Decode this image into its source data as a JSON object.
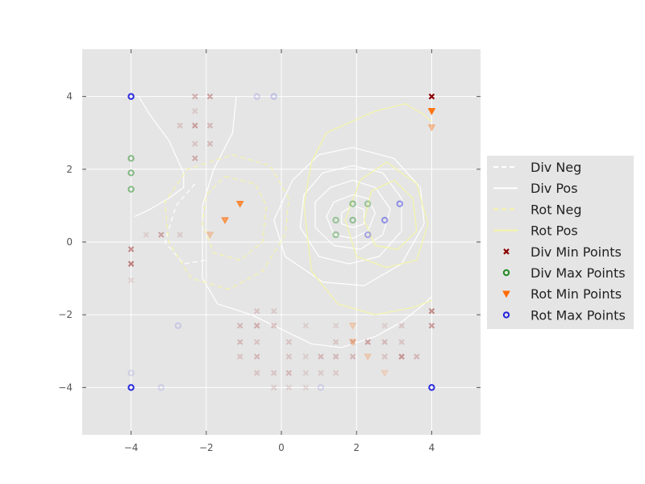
{
  "chart_data": {
    "type": "scatter",
    "title": "",
    "xlabel": "",
    "ylabel": "",
    "xlim": [
      -5.3,
      5.3
    ],
    "ylim": [
      -5.3,
      5.3
    ],
    "grid": true,
    "background": "#e5e5e5",
    "legend_position": "right",
    "x_ticks": [
      {
        "value": -4,
        "label": "−4"
      },
      {
        "value": -2,
        "label": "−2"
      },
      {
        "value": 0,
        "label": "0"
      },
      {
        "value": 2,
        "label": "2"
      },
      {
        "value": 4,
        "label": "4"
      }
    ],
    "y_ticks": [
      {
        "value": 4,
        "label": "4"
      },
      {
        "value": 2,
        "label": "2"
      },
      {
        "value": 0,
        "label": "0"
      },
      {
        "value": -2,
        "label": "−2"
      },
      {
        "value": -4,
        "label": "−4"
      }
    ],
    "legend": [
      {
        "label": "Div Neg",
        "kind": "line",
        "color": "#ffffff",
        "dashed": true
      },
      {
        "label": "Div Pos",
        "kind": "line",
        "color": "#ffffff",
        "dashed": false
      },
      {
        "label": "Rot Neg",
        "kind": "line",
        "color": "#f5f5a8",
        "dashed": true
      },
      {
        "label": "Rot Pos",
        "kind": "line",
        "color": "#f5f5a8",
        "dashed": false
      },
      {
        "label": "Div Min Points",
        "kind": "x",
        "color": "#8b0000"
      },
      {
        "label": "Div Max Points",
        "kind": "o",
        "color": "#228b22"
      },
      {
        "label": "Rot Min Points",
        "kind": "v",
        "color": "#ff6a00"
      },
      {
        "label": "Rot Max Points",
        "kind": "o",
        "color": "#2222dd"
      }
    ],
    "div_neg_contours": [
      [
        [
          -2.3,
          1.6
        ],
        [
          -2.8,
          1.0
        ],
        [
          -3.1,
          0.0
        ],
        [
          -2.6,
          -0.6
        ],
        [
          -2.0,
          -0.5
        ]
      ]
    ],
    "div_pos_contours": [
      [
        [
          -3.8,
          4.0
        ],
        [
          -3.5,
          3.5
        ],
        [
          -3.0,
          2.8
        ],
        [
          -2.6,
          1.9
        ],
        [
          -2.6,
          1.5
        ],
        [
          -3.0,
          1.2
        ],
        [
          -3.5,
          0.9
        ],
        [
          -3.9,
          0.7
        ]
      ],
      [
        [
          -1.2,
          4.0
        ],
        [
          -1.3,
          3.0
        ],
        [
          -1.8,
          2.0
        ],
        [
          -2.1,
          1.0
        ],
        [
          -2.1,
          0.0
        ],
        [
          -2.1,
          -1.0
        ],
        [
          -1.7,
          -1.7
        ],
        [
          -0.8,
          -2.0
        ],
        [
          0.0,
          -2.4
        ],
        [
          0.8,
          -2.8
        ],
        [
          1.6,
          -2.9
        ],
        [
          2.5,
          -2.6
        ],
        [
          3.2,
          -2.2
        ],
        [
          3.8,
          -1.7
        ],
        [
          4.0,
          -1.5
        ]
      ],
      [
        [
          1.9,
          2.6
        ],
        [
          3.0,
          2.3
        ],
        [
          3.7,
          1.5
        ],
        [
          3.8,
          0.5
        ],
        [
          3.2,
          -0.6
        ],
        [
          2.2,
          -1.2
        ],
        [
          1.1,
          -1.1
        ],
        [
          0.1,
          -0.4
        ],
        [
          -0.2,
          0.6
        ],
        [
          0.3,
          1.7
        ],
        [
          1.0,
          2.4
        ],
        [
          1.9,
          2.6
        ]
      ],
      [
        [
          1.9,
          2.1
        ],
        [
          2.7,
          1.9
        ],
        [
          3.2,
          1.2
        ],
        [
          3.2,
          0.3
        ],
        [
          2.6,
          -0.4
        ],
        [
          1.8,
          -0.6
        ],
        [
          1.0,
          -0.4
        ],
        [
          0.5,
          0.4
        ],
        [
          0.6,
          1.3
        ],
        [
          1.1,
          1.9
        ],
        [
          1.9,
          2.1
        ]
      ],
      [
        [
          1.9,
          1.7
        ],
        [
          2.5,
          1.5
        ],
        [
          2.9,
          0.9
        ],
        [
          2.7,
          0.2
        ],
        [
          2.1,
          -0.2
        ],
        [
          1.4,
          -0.1
        ],
        [
          0.9,
          0.4
        ],
        [
          0.9,
          1.1
        ],
        [
          1.3,
          1.5
        ],
        [
          1.9,
          1.7
        ]
      ],
      [
        [
          1.9,
          1.3
        ],
        [
          2.3,
          1.2
        ],
        [
          2.5,
          0.8
        ],
        [
          2.3,
          0.3
        ],
        [
          1.9,
          0.1
        ],
        [
          1.4,
          0.2
        ],
        [
          1.2,
          0.7
        ],
        [
          1.4,
          1.1
        ],
        [
          1.9,
          1.3
        ]
      ],
      [
        [
          1.9,
          1.0
        ],
        [
          2.2,
          0.9
        ],
        [
          2.2,
          0.5
        ],
        [
          1.9,
          0.4
        ],
        [
          1.6,
          0.5
        ],
        [
          1.6,
          0.8
        ],
        [
          1.9,
          1.0
        ]
      ]
    ],
    "rot_neg_contours": [
      [
        [
          -1.3,
          2.4
        ],
        [
          -0.3,
          2.1
        ],
        [
          0.2,
          1.2
        ],
        [
          0.1,
          0.2
        ],
        [
          -0.5,
          -0.8
        ],
        [
          -1.4,
          -1.3
        ],
        [
          -2.4,
          -1.0
        ],
        [
          -3.0,
          0.0
        ],
        [
          -3.1,
          1.1
        ],
        [
          -2.5,
          2.0
        ],
        [
          -1.3,
          2.4
        ]
      ],
      [
        [
          -1.5,
          1.8
        ],
        [
          -0.7,
          1.6
        ],
        [
          -0.4,
          1.0
        ],
        [
          -0.5,
          0.0
        ],
        [
          -1.1,
          -0.5
        ],
        [
          -1.8,
          -0.3
        ],
        [
          -2.1,
          0.5
        ],
        [
          -2.0,
          1.3
        ],
        [
          -1.5,
          1.8
        ]
      ]
    ],
    "rot_pos_contours": [
      [
        [
          1.2,
          3.0
        ],
        [
          2.5,
          3.6
        ],
        [
          3.3,
          3.8
        ],
        [
          3.8,
          3.5
        ],
        [
          4.0,
          3.3
        ]
      ],
      [
        [
          1.2,
          3.0
        ],
        [
          0.8,
          2.2
        ],
        [
          0.6,
          1.0
        ],
        [
          0.8,
          -0.8
        ],
        [
          1.5,
          -1.7
        ],
        [
          2.5,
          -2.0
        ],
        [
          3.5,
          -1.8
        ],
        [
          4.0,
          -1.6
        ]
      ],
      [
        [
          2.8,
          2.2
        ],
        [
          3.6,
          1.6
        ],
        [
          3.9,
          0.5
        ],
        [
          3.6,
          -0.5
        ],
        [
          2.8,
          -0.7
        ],
        [
          2.0,
          -0.4
        ],
        [
          1.7,
          0.6
        ],
        [
          2.1,
          1.7
        ],
        [
          2.8,
          2.2
        ]
      ],
      [
        [
          3.0,
          1.7
        ],
        [
          3.5,
          1.2
        ],
        [
          3.6,
          0.3
        ],
        [
          3.1,
          -0.2
        ],
        [
          2.5,
          -0.1
        ],
        [
          2.2,
          0.6
        ],
        [
          2.4,
          1.4
        ],
        [
          3.0,
          1.7
        ]
      ]
    ],
    "div_min_points": [
      {
        "x": 4.0,
        "y": 4.0,
        "alpha": 1.0
      },
      {
        "x": -2.3,
        "y": 4.0,
        "alpha": 0.25
      },
      {
        "x": -1.9,
        "y": 4.0,
        "alpha": 0.3
      },
      {
        "x": -2.3,
        "y": 3.6,
        "alpha": 0.12
      },
      {
        "x": -2.7,
        "y": 3.2,
        "alpha": 0.15
      },
      {
        "x": -2.3,
        "y": 3.2,
        "alpha": 0.3
      },
      {
        "x": -1.9,
        "y": 3.2,
        "alpha": 0.2
      },
      {
        "x": -2.3,
        "y": 2.7,
        "alpha": 0.15
      },
      {
        "x": -1.9,
        "y": 2.7,
        "alpha": 0.2
      },
      {
        "x": -2.3,
        "y": 2.3,
        "alpha": 0.25
      },
      {
        "x": -3.6,
        "y": 0.2,
        "alpha": 0.1
      },
      {
        "x": -3.2,
        "y": 0.2,
        "alpha": 0.3
      },
      {
        "x": -2.7,
        "y": 0.2,
        "alpha": 0.12
      },
      {
        "x": -4.0,
        "y": -0.2,
        "alpha": 0.4
      },
      {
        "x": -4.0,
        "y": -0.6,
        "alpha": 0.45
      },
      {
        "x": -4.0,
        "y": -1.05,
        "alpha": 0.1
      },
      {
        "x": 4.0,
        "y": -1.9,
        "alpha": 0.4
      },
      {
        "x": 4.0,
        "y": -2.3,
        "alpha": 0.35
      },
      {
        "x": -0.65,
        "y": -1.9,
        "alpha": 0.15
      },
      {
        "x": -0.2,
        "y": -1.9,
        "alpha": 0.12
      },
      {
        "x": -1.1,
        "y": -2.3,
        "alpha": 0.2
      },
      {
        "x": -0.65,
        "y": -2.3,
        "alpha": 0.25
      },
      {
        "x": -0.2,
        "y": -2.3,
        "alpha": 0.2
      },
      {
        "x": 0.65,
        "y": -2.3,
        "alpha": 0.1
      },
      {
        "x": 1.45,
        "y": -2.3,
        "alpha": 0.1
      },
      {
        "x": 2.75,
        "y": -2.3,
        "alpha": 0.1
      },
      {
        "x": 3.2,
        "y": -2.3,
        "alpha": 0.15
      },
      {
        "x": -1.1,
        "y": -2.75,
        "alpha": 0.2
      },
      {
        "x": -0.65,
        "y": -2.75,
        "alpha": 0.15
      },
      {
        "x": 0.2,
        "y": -2.75,
        "alpha": 0.15
      },
      {
        "x": 1.45,
        "y": -2.75,
        "alpha": 0.15
      },
      {
        "x": 1.9,
        "y": -2.75,
        "alpha": 0.2
      },
      {
        "x": 2.3,
        "y": -2.75,
        "alpha": 0.3
      },
      {
        "x": 2.75,
        "y": -2.75,
        "alpha": 0.2
      },
      {
        "x": 3.2,
        "y": -2.75,
        "alpha": 0.15
      },
      {
        "x": -1.1,
        "y": -3.15,
        "alpha": 0.15
      },
      {
        "x": -0.65,
        "y": -3.15,
        "alpha": 0.2
      },
      {
        "x": 0.2,
        "y": -3.15,
        "alpha": 0.15
      },
      {
        "x": 0.65,
        "y": -3.15,
        "alpha": 0.1
      },
      {
        "x": 1.05,
        "y": -3.15,
        "alpha": 0.2
      },
      {
        "x": 1.45,
        "y": -3.15,
        "alpha": 0.2
      },
      {
        "x": 1.9,
        "y": -3.15,
        "alpha": 0.2
      },
      {
        "x": 2.75,
        "y": -3.15,
        "alpha": 0.15
      },
      {
        "x": 3.2,
        "y": -3.15,
        "alpha": 0.35
      },
      {
        "x": 3.6,
        "y": -3.15,
        "alpha": 0.2
      },
      {
        "x": -0.65,
        "y": -3.6,
        "alpha": 0.15
      },
      {
        "x": -0.2,
        "y": -3.6,
        "alpha": 0.15
      },
      {
        "x": 0.2,
        "y": -3.6,
        "alpha": 0.2
      },
      {
        "x": 0.65,
        "y": -3.6,
        "alpha": 0.1
      },
      {
        "x": 1.05,
        "y": -3.6,
        "alpha": 0.12
      },
      {
        "x": 1.45,
        "y": -3.6,
        "alpha": 0.12
      },
      {
        "x": -0.2,
        "y": -4.0,
        "alpha": 0.12
      },
      {
        "x": 0.2,
        "y": -4.0,
        "alpha": 0.1
      },
      {
        "x": 0.65,
        "y": -4.0,
        "alpha": 0.1
      }
    ],
    "div_max_points": [
      {
        "x": -4.0,
        "y": 2.3,
        "alpha": 0.5
      },
      {
        "x": -4.0,
        "y": 1.9,
        "alpha": 0.5
      },
      {
        "x": -4.0,
        "y": 1.45,
        "alpha": 0.5
      },
      {
        "x": 1.9,
        "y": 1.05,
        "alpha": 0.45
      },
      {
        "x": 2.3,
        "y": 1.05,
        "alpha": 0.4
      },
      {
        "x": 1.45,
        "y": 0.6,
        "alpha": 0.4
      },
      {
        "x": 1.9,
        "y": 0.6,
        "alpha": 0.45
      },
      {
        "x": 1.45,
        "y": 0.2,
        "alpha": 0.4
      }
    ],
    "rot_min_points": [
      {
        "x": 4.0,
        "y": 3.6,
        "alpha": 0.9
      },
      {
        "x": 4.0,
        "y": 3.15,
        "alpha": 0.35
      },
      {
        "x": -1.1,
        "y": 1.05,
        "alpha": 0.7
      },
      {
        "x": -1.5,
        "y": 0.6,
        "alpha": 0.6
      },
      {
        "x": -1.9,
        "y": 0.2,
        "alpha": 0.25
      },
      {
        "x": 1.9,
        "y": -2.3,
        "alpha": 0.2
      },
      {
        "x": 1.9,
        "y": -2.75,
        "alpha": 0.25
      },
      {
        "x": 2.3,
        "y": -3.15,
        "alpha": 0.2
      },
      {
        "x": 2.75,
        "y": -3.6,
        "alpha": 0.15
      }
    ],
    "rot_max_points": [
      {
        "x": -4.0,
        "y": 4.0,
        "alpha": 0.95
      },
      {
        "x": -4.0,
        "y": -4.0,
        "alpha": 0.95
      },
      {
        "x": 4.0,
        "y": -4.0,
        "alpha": 0.95
      },
      {
        "x": -0.65,
        "y": 4.0,
        "alpha": 0.15
      },
      {
        "x": -0.2,
        "y": 4.0,
        "alpha": 0.2
      },
      {
        "x": 3.15,
        "y": 1.05,
        "alpha": 0.45
      },
      {
        "x": 2.75,
        "y": 0.6,
        "alpha": 0.45
      },
      {
        "x": 2.3,
        "y": 0.2,
        "alpha": 0.35
      },
      {
        "x": -2.75,
        "y": -2.3,
        "alpha": 0.15
      },
      {
        "x": -4.0,
        "y": -3.6,
        "alpha": 0.12
      },
      {
        "x": -3.2,
        "y": -4.0,
        "alpha": 0.12
      },
      {
        "x": 1.05,
        "y": -4.0,
        "alpha": 0.12
      }
    ]
  }
}
